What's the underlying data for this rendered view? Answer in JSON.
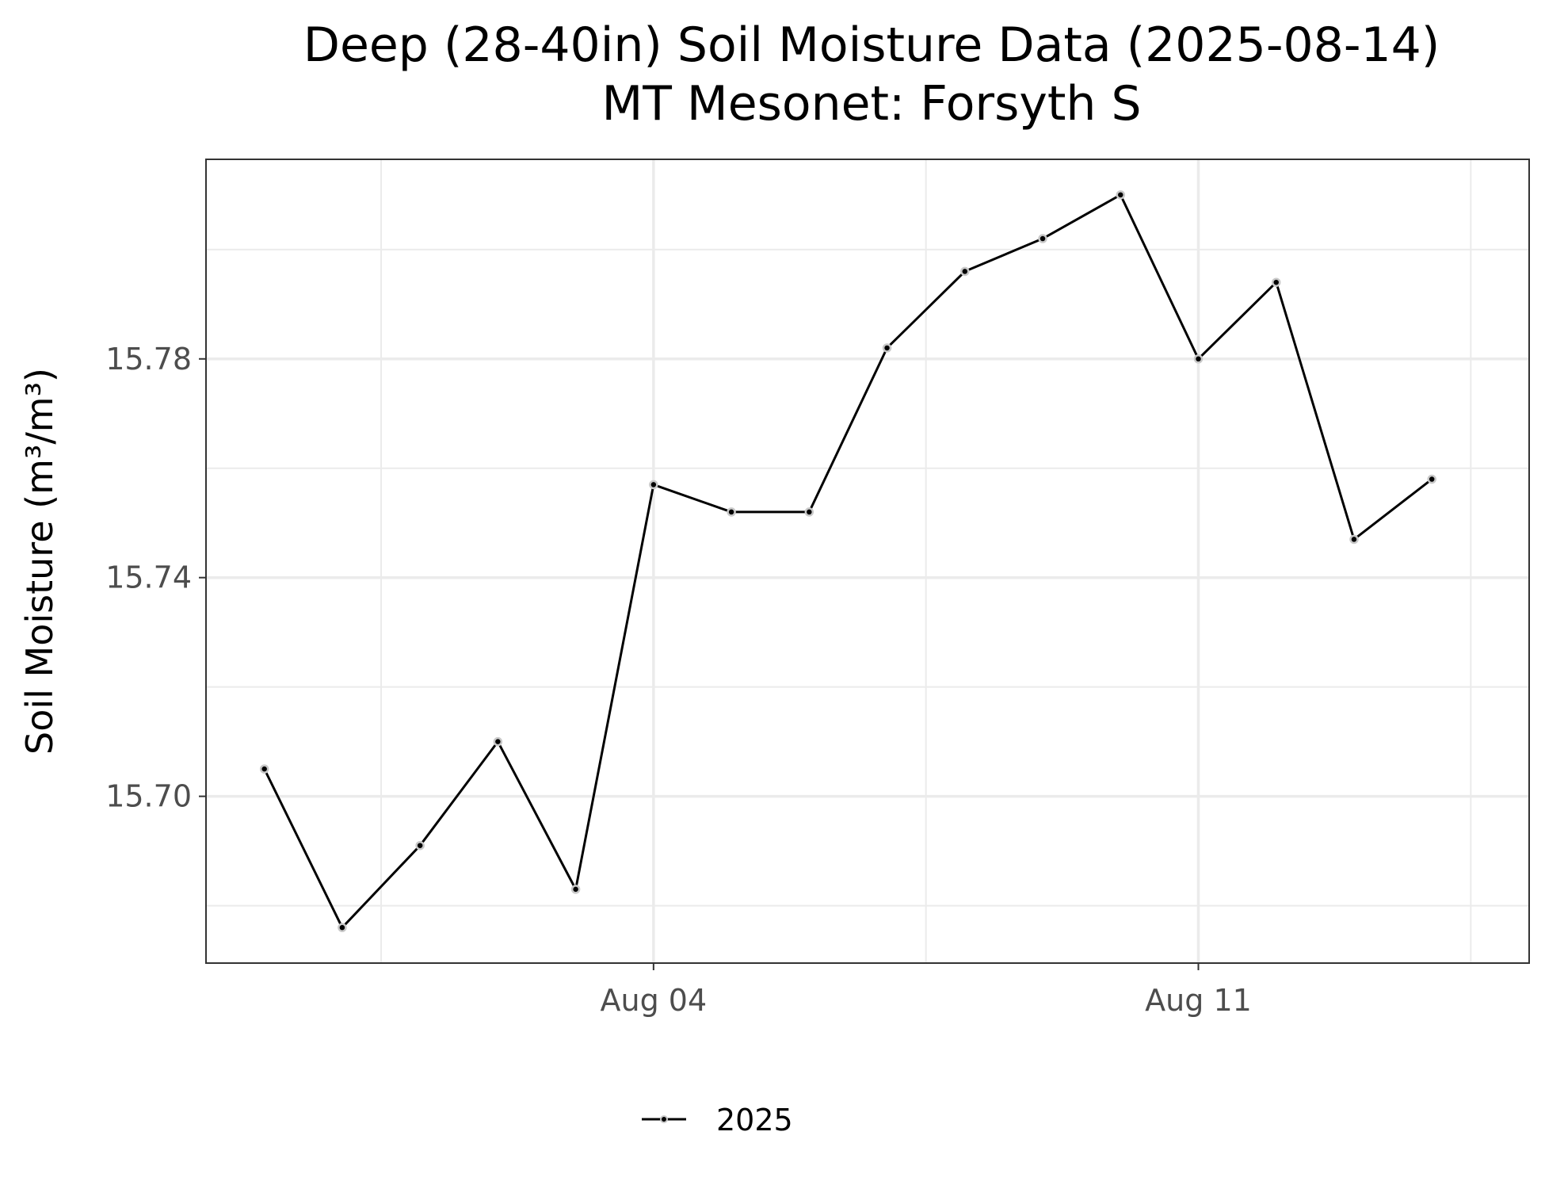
{
  "chart_data": {
    "type": "line",
    "title_line1": "Deep (28-40in) Soil Moisture Data (2025-08-14)",
    "title_line2": "MT Mesonet: Forsyth S",
    "ylabel": "Soil Moisture (m³/m³)",
    "xlabel": "",
    "x_ticks": [
      {
        "date": "2025-08-04",
        "label": "Aug 04"
      },
      {
        "date": "2025-08-11",
        "label": "Aug 11"
      }
    ],
    "y_ticks": [
      15.7,
      15.74,
      15.78
    ],
    "xlim": [
      "2025-07-29 06:00",
      "2025-08-15 06:00"
    ],
    "ylim": [
      15.6695,
      15.8165
    ],
    "grid": true,
    "legend_position": "bottom",
    "colors": {
      "line": "#000000",
      "point_halo": "#c8c8c8",
      "grid": "#ebebeb",
      "frame": "#333333"
    },
    "series": [
      {
        "name": "2025",
        "x": [
          "2025-07-30",
          "2025-07-31",
          "2025-08-01",
          "2025-08-02",
          "2025-08-03",
          "2025-08-04",
          "2025-08-05",
          "2025-08-06",
          "2025-08-07",
          "2025-08-08",
          "2025-08-09",
          "2025-08-10",
          "2025-08-11",
          "2025-08-12",
          "2025-08-13",
          "2025-08-14"
        ],
        "y": [
          15.705,
          15.676,
          15.691,
          15.71,
          15.683,
          15.757,
          15.752,
          15.752,
          15.782,
          15.796,
          15.802,
          15.81,
          15.78,
          15.794,
          15.747,
          15.758
        ]
      }
    ]
  }
}
